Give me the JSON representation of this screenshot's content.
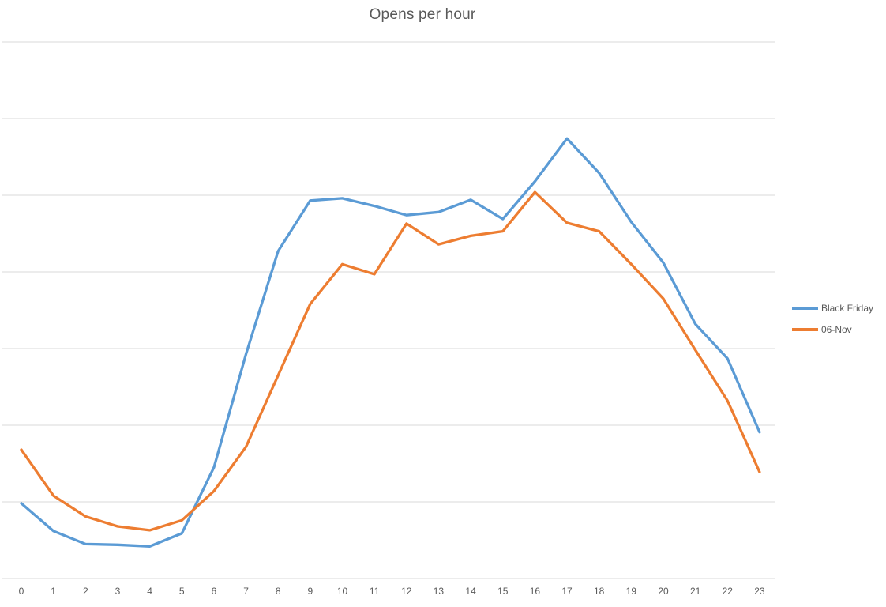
{
  "chart_data": {
    "type": "line",
    "title": "Opens per hour",
    "x": [
      0,
      1,
      2,
      3,
      4,
      5,
      6,
      7,
      8,
      9,
      10,
      11,
      12,
      13,
      14,
      15,
      16,
      17,
      18,
      19,
      20,
      21,
      22,
      23
    ],
    "xlabel": "",
    "ylabel": "",
    "y_tick_labels_visible": false,
    "ylim": [
      0,
      700
    ],
    "gridline_step": 100,
    "grid": "horizontal",
    "legend_position": "right",
    "series": [
      {
        "name": "Black Friday",
        "color": "#5B9BD5",
        "values": [
          98,
          62,
          45,
          44,
          42,
          59,
          145,
          293,
          427,
          493,
          496,
          486,
          474,
          478,
          494,
          469,
          518,
          574,
          529,
          465,
          412,
          332,
          287,
          191
        ]
      },
      {
        "name": "06-Nov",
        "color": "#ED7D31",
        "values": [
          168,
          108,
          81,
          68,
          63,
          76,
          114,
          172,
          265,
          358,
          410,
          397,
          463,
          436,
          447,
          453,
          504,
          464,
          453,
          410,
          365,
          298,
          232,
          139
        ]
      }
    ]
  },
  "colors": {
    "gridline": "#D9D9D9",
    "text": "#595959",
    "background": "#FFFFFF"
  }
}
